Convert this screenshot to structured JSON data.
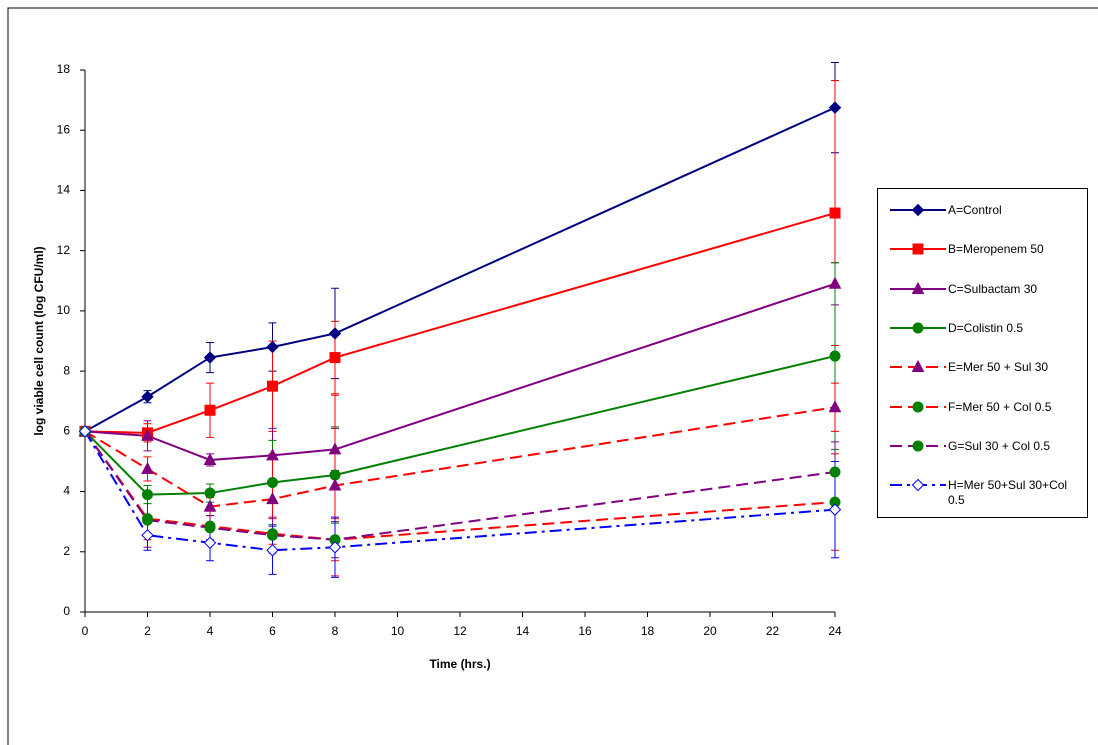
{
  "chart_data": {
    "type": "line",
    "x_label": "Time (hrs.)",
    "y_label": "log viable cell count (log CFU/ml)",
    "x": [
      0,
      2,
      4,
      6,
      8,
      24
    ],
    "xlim": [
      0,
      24
    ],
    "xticks": [
      0,
      2,
      4,
      6,
      8,
      10,
      12,
      14,
      16,
      18,
      20,
      22,
      24
    ],
    "ylim": [
      0,
      18
    ],
    "yticks": [
      0,
      2,
      4,
      6,
      8,
      10,
      12,
      14,
      16,
      18
    ],
    "legend": "right",
    "series": [
      {
        "name": "A=Control",
        "color": "#000080",
        "marker_color": "#000080",
        "marker": "diamond",
        "dash": "solid",
        "values": [
          6,
          7.15,
          8.45,
          8.8,
          9.25,
          16.75
        ],
        "errors": [
          0,
          0.2,
          0.5,
          0.8,
          1.5,
          1.5
        ]
      },
      {
        "name": "B=Meropenem 50",
        "color": "#ff0000",
        "marker_color": "#ff0000",
        "marker": "square",
        "dash": "solid",
        "values": [
          6,
          5.95,
          6.7,
          7.5,
          8.45,
          13.25
        ],
        "errors": [
          0,
          0.3,
          0.9,
          1.5,
          1.2,
          4.4
        ]
      },
      {
        "name": "C=Sulbactam 30",
        "color": "#800080",
        "marker_color": "#800080",
        "marker": "triangle",
        "dash": "solid",
        "values": [
          6,
          5.85,
          5.05,
          5.2,
          5.4,
          10.9
        ],
        "errors": [
          0,
          0.5,
          0.2,
          0.9,
          0.7,
          0.7
        ]
      },
      {
        "name": "D=Colistin 0.5",
        "color": "#008000",
        "marker_color": "#008000",
        "marker": "circle",
        "dash": "solid",
        "values": [
          6,
          3.9,
          3.95,
          4.3,
          4.55,
          8.5
        ],
        "errors": [
          0,
          0.3,
          0.3,
          1.4,
          1.6,
          3.1
        ]
      },
      {
        "name": "E=Mer 50 + Sul 30",
        "color": "#ff0000",
        "marker_color": "#800080",
        "marker": "triangle",
        "dash": "dashed",
        "values": [
          6,
          4.75,
          3.5,
          3.75,
          4.2,
          6.8
        ],
        "errors": [
          0,
          0.4,
          0.3,
          1.5,
          3.0,
          0.8
        ]
      },
      {
        "name": "F=Mer 50 + Col 0.5",
        "color": "#ff0000",
        "marker_color": "#008000",
        "marker": "circle",
        "dash": "dashed",
        "values": [
          6,
          3.1,
          2.85,
          2.6,
          2.4,
          3.65
        ],
        "errors": [
          0,
          0.7,
          0.5,
          0.5,
          0.7,
          1.6
        ]
      },
      {
        "name": "G=Sul 30 + Col 0.5",
        "color": "#800080",
        "marker_color": "#008000",
        "marker": "circle",
        "dash": "dashed",
        "values": [
          6,
          3.05,
          2.8,
          2.55,
          2.4,
          4.65
        ],
        "errors": [
          0,
          0.9,
          0.4,
          0.6,
          0.6,
          1.0
        ]
      },
      {
        "name": "H=Mer 50+Sul 30+Col 0.5",
        "color": "#0000ff",
        "marker_color": "#0000ff",
        "marker": "open-diamond",
        "dash": "dashdot",
        "values": [
          6,
          2.55,
          2.3,
          2.05,
          2.15,
          3.4
        ],
        "errors": [
          0,
          0.5,
          0.6,
          0.8,
          1.0,
          1.6
        ]
      }
    ]
  }
}
